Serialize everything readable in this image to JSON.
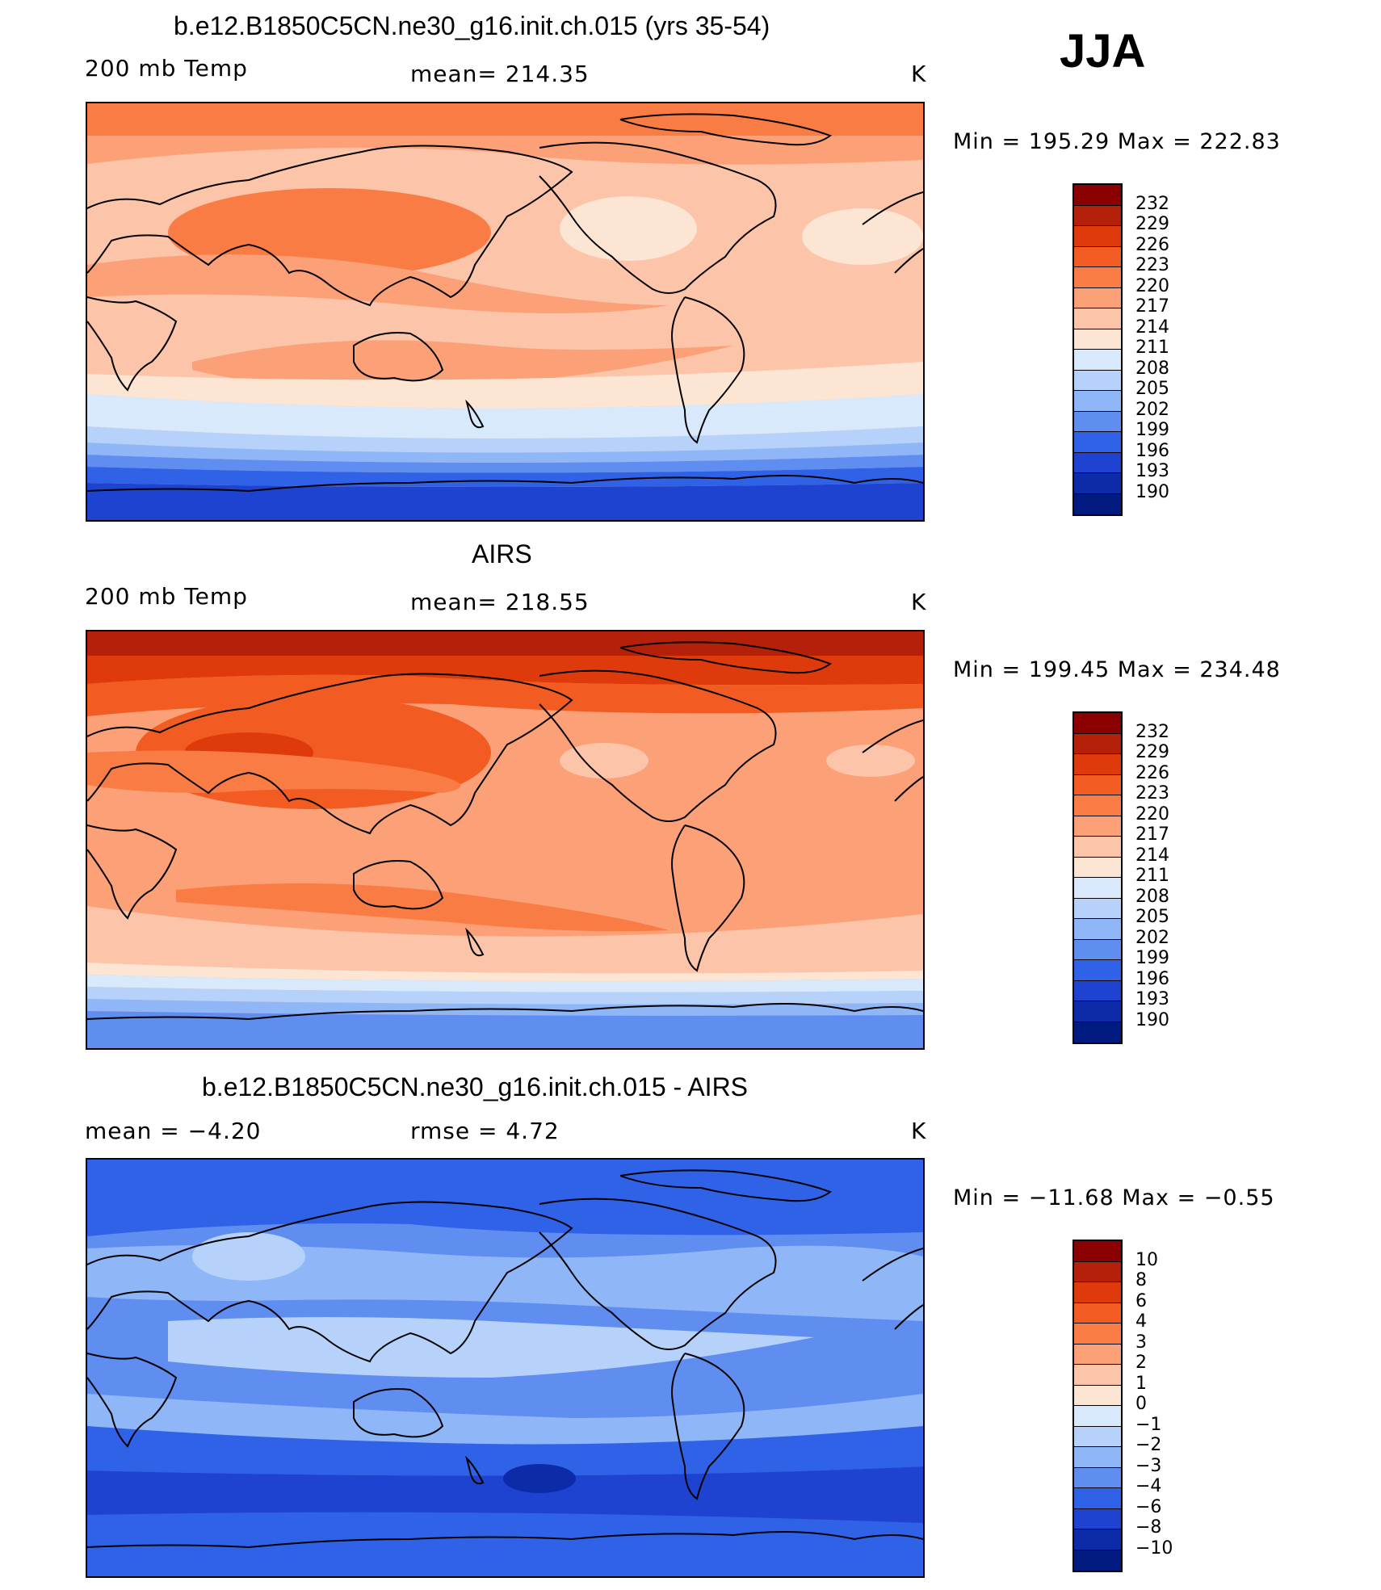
{
  "season": "JJA",
  "panels": [
    {
      "title": "b.e12.B1850C5CN.ne30_g16.init.ch.015 (yrs 35-54)",
      "left_label": "200 mb Temp",
      "center_label": "mean=  214.35",
      "units": "K",
      "minmax": "Min  =  195.29  Max  =  222.83",
      "colorbar_labels": [
        "232",
        "229",
        "226",
        "223",
        "220",
        "217",
        "214",
        "211",
        "208",
        "205",
        "202",
        "199",
        "196",
        "193",
        "190"
      ],
      "colors": [
        "#8b0000",
        "#b5200a",
        "#de3a0b",
        "#f25c22",
        "#fa7c45",
        "#fca078",
        "#fcc4a8",
        "#fde5d3",
        "#d8e9fb",
        "#b6d2fb",
        "#8fb6f7",
        "#5f8ef0",
        "#2f62e6",
        "#1d43d0",
        "#0d2aa8",
        "#001a80"
      ]
    },
    {
      "title": "AIRS",
      "left_label": "200 mb Temp",
      "center_label": "mean=  218.55",
      "units": "K",
      "minmax": "Min  =  199.45  Max  =  234.48",
      "colorbar_labels": [
        "232",
        "229",
        "226",
        "223",
        "220",
        "217",
        "214",
        "211",
        "208",
        "205",
        "202",
        "199",
        "196",
        "193",
        "190"
      ],
      "colors": [
        "#8b0000",
        "#b5200a",
        "#de3a0b",
        "#f25c22",
        "#fa7c45",
        "#fca078",
        "#fcc4a8",
        "#fde5d3",
        "#d8e9fb",
        "#b6d2fb",
        "#8fb6f7",
        "#5f8ef0",
        "#2f62e6",
        "#1d43d0",
        "#0d2aa8",
        "#001a80"
      ]
    },
    {
      "title": "b.e12.B1850C5CN.ne30_g16.init.ch.015 - AIRS",
      "left_label": "mean  =    −4.20",
      "center_label": "rmse  =     4.72",
      "units": "K",
      "minmax": "Min  =  −11.68  Max  =   −0.55",
      "colorbar_labels": [
        "10",
        "8",
        "6",
        "4",
        "3",
        "2",
        "1",
        "0",
        "−1",
        "−2",
        "−3",
        "−4",
        "−6",
        "−8",
        "−10"
      ],
      "colors": [
        "#8b0000",
        "#b5200a",
        "#de3a0b",
        "#f25c22",
        "#fa7c45",
        "#fca078",
        "#fcc4a8",
        "#fde5d3",
        "#d8e9fb",
        "#b6d2fb",
        "#8fb6f7",
        "#5f8ef0",
        "#2f62e6",
        "#1d43d0",
        "#0d2aa8",
        "#001a80"
      ]
    }
  ]
}
